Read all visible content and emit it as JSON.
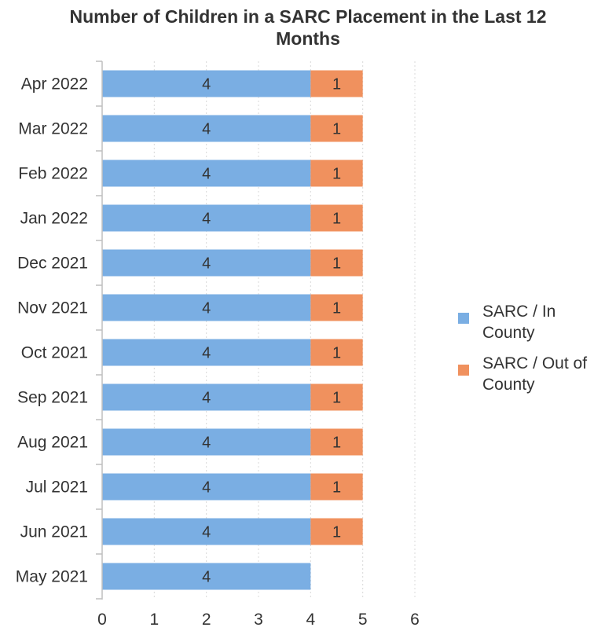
{
  "chart_data": {
    "type": "bar",
    "orientation": "horizontal",
    "stacked": true,
    "title_lines": [
      "Number of Children in a SARC Placement in the Last 12",
      "Months"
    ],
    "categories": [
      "Apr 2022",
      "Mar 2022",
      "Feb 2022",
      "Jan 2022",
      "Dec 2021",
      "Nov 2021",
      "Oct 2021",
      "Sep 2021",
      "Aug 2021",
      "Jul 2021",
      "Jun 2021",
      "May 2021"
    ],
    "series": [
      {
        "name": "SARC / In County",
        "legend_lines": [
          "SARC / In",
          "County"
        ],
        "color": "#7aaee3",
        "values": [
          4,
          4,
          4,
          4,
          4,
          4,
          4,
          4,
          4,
          4,
          4,
          4
        ]
      },
      {
        "name": "SARC / Out of County",
        "legend_lines": [
          "SARC / Out of",
          "County"
        ],
        "color": "#f0915e",
        "values": [
          1,
          1,
          1,
          1,
          1,
          1,
          1,
          1,
          1,
          1,
          1,
          null
        ]
      }
    ],
    "xlim": [
      0,
      6
    ],
    "xticks": [
      0,
      1,
      2,
      3,
      4,
      5,
      6
    ],
    "grid": true,
    "legend_position": "right"
  }
}
